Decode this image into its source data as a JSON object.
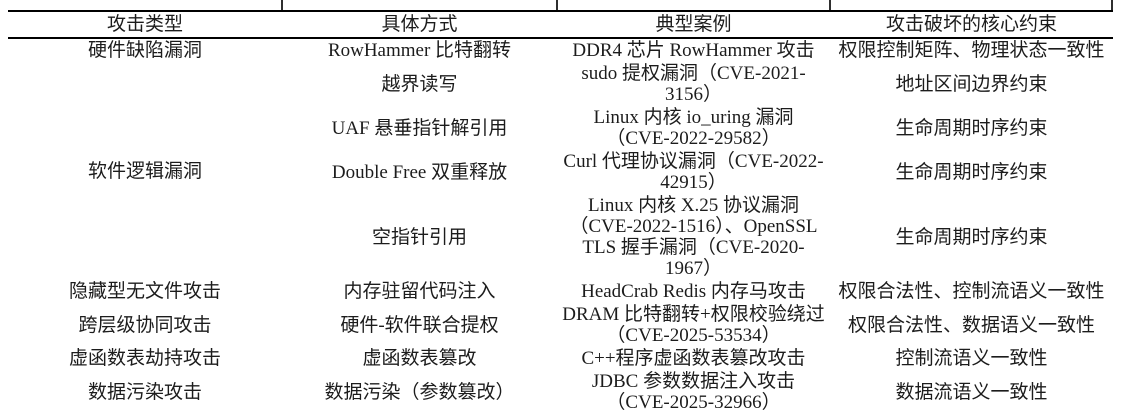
{
  "table": {
    "headers": [
      "攻击类型",
      "具体方式",
      "典型案例",
      "攻击破坏的核心约束"
    ],
    "groups": [
      {
        "type": "硬件缺陷漏洞",
        "rows": [
          {
            "method": "RowHammer 比特翻转",
            "case": "DDR4 芯片 RowHammer 攻击",
            "constraint": "权限控制矩阵、物理状态一致性"
          }
        ]
      },
      {
        "type": "软件逻辑漏洞",
        "rows": [
          {
            "method": "越界读写",
            "case": "sudo 提权漏洞（CVE-2021-3156）",
            "constraint": "地址区间边界约束"
          },
          {
            "method": "UAF 悬垂指针解引用",
            "case": "Linux 内核 io_uring 漏洞（CVE-2022-29582）",
            "constraint": "生命周期时序约束"
          },
          {
            "method": "Double Free 双重释放",
            "case": "Curl 代理协议漏洞（CVE-2022-42915）",
            "constraint": "生命周期时序约束"
          },
          {
            "method": "空指针引用",
            "case": "Linux 内核 X.25 协议漏洞（CVE-2022-1516）、OpenSSL TLS 握手漏洞（CVE-2020-1967）",
            "constraint": "生命周期时序约束"
          }
        ]
      },
      {
        "type": "隐藏型无文件攻击",
        "rows": [
          {
            "method": "内存驻留代码注入",
            "case": "HeadCrab Redis 内存马攻击",
            "constraint": "权限合法性、控制流语义一致性"
          }
        ]
      },
      {
        "type": "跨层级协同攻击",
        "rows": [
          {
            "method": "硬件-软件联合提权",
            "case": "DRAM 比特翻转+权限校验绕过（CVE-2025-53534）",
            "constraint": "权限合法性、数据语义一致性"
          }
        ]
      },
      {
        "type": "虚函数表劫持攻击",
        "rows": [
          {
            "method": "虚函数表篡改",
            "case": "C++程序虚函数表篡改攻击",
            "constraint": "控制流语义一致性"
          }
        ]
      },
      {
        "type": "数据污染攻击",
        "rows": [
          {
            "method": "数据污染（参数篡改）",
            "case": "JDBC 参数数据注入攻击（CVE-2025-32966）",
            "constraint": "数据流语义一致性"
          }
        ]
      }
    ]
  }
}
